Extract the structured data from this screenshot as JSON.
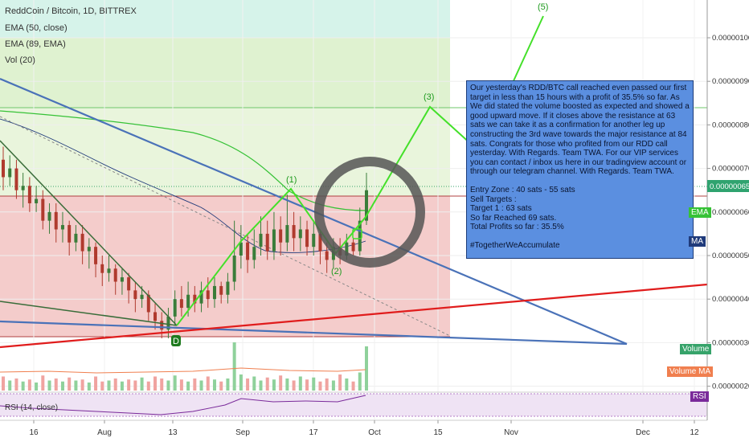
{
  "header": {
    "symbol_title": "ReddCoin / Bitcoin, 1D, BITTREX",
    "ema50_label": "EMA (50, close)",
    "ema89_label": "EMA (89, EMA)",
    "vol_label": "Vol (20)",
    "rsi_label": "RSI (14, close)"
  },
  "note": {
    "text": "Our yesterday's RDD/BTC call reached even passed our first target in less than 15 hours with a profit of 35.5% so far. As We did stated the volume boosted as expected and showed a good upward move. If it closes above the resistance at 63 sats we can take it as a confirmation for another leg up constructing the 3rd wave towards the major resistance at 84 sats. Congrats for those who profited from our RDD call yesterday. With Regards. Team TWA. For our VIP services you can contact / inbox us here in our tradingview account or through our telegram channel. With Regards. Team TWA.",
    "entry": "Entry Zone : 40 sats - 55 sats",
    "sell": "Sell Targets :",
    "target1": "Target 1 : 63 sats",
    "reached": "So far Reached 69 sats.",
    "profits": "Total Profits so far : 35.5%",
    "hashtag": "#TogetherWeAccumulate"
  },
  "tags": {
    "ema": "EMA",
    "ma": "MA",
    "volume": "Volume",
    "volume_ma": "Volume MA",
    "rsi": "RSI",
    "price": "0.00000065"
  },
  "colors": {
    "green_zone": "#dff2d0",
    "red_zone": "#f4cccb",
    "top_zone": "#d6f3ea",
    "candle_up": "#3a7d3a",
    "candle_down": "#b03a2e",
    "wave": "#44e02a",
    "trend_blue": "#4a72b8",
    "trend_red": "#e01c1c",
    "ema_green": "#36c236",
    "ema_navy": "#1f3a7a",
    "note_bg": "#5b8fe0",
    "circle": "#555555"
  },
  "chart_data": {
    "type": "candlestick",
    "title": "ReddCoin / Bitcoin, 1D, BITTREX",
    "y_unit": "BTC",
    "ylim": [
      1.7e-07,
      1.06e-07
    ],
    "y_ticks": [
      "0.00000100",
      "0.00000090",
      "0.00000080",
      "0.00000070",
      "0.00000060",
      "0.00000050",
      "0.00000040",
      "0.00000030",
      "0.00000020"
    ],
    "x_ticks": [
      "16",
      "Aug",
      "13",
      "Sep",
      "17",
      "Oct",
      "15",
      "Nov",
      "Dec",
      "12"
    ],
    "last_price": 6.5e-07,
    "levels": {
      "resistance_major": 8.4e-07,
      "resistance": 6.3e-07,
      "support": 3e-07,
      "top": 1e-06
    },
    "wave_labels": [
      "(1)",
      "(2)",
      "(3)",
      "(5)",
      "D"
    ],
    "candles": [
      {
        "o": 72,
        "c": 68,
        "h": 75,
        "l": 65
      },
      {
        "o": 68,
        "c": 70,
        "h": 73,
        "l": 66
      },
      {
        "o": 70,
        "c": 65,
        "h": 72,
        "l": 63
      },
      {
        "o": 65,
        "c": 66,
        "h": 69,
        "l": 61
      },
      {
        "o": 66,
        "c": 62,
        "h": 68,
        "l": 60
      },
      {
        "o": 62,
        "c": 63,
        "h": 66,
        "l": 60
      },
      {
        "o": 63,
        "c": 58,
        "h": 65,
        "l": 56
      },
      {
        "o": 58,
        "c": 60,
        "h": 62,
        "l": 55
      },
      {
        "o": 60,
        "c": 56,
        "h": 62,
        "l": 53
      },
      {
        "o": 56,
        "c": 57,
        "h": 60,
        "l": 53
      },
      {
        "o": 57,
        "c": 53,
        "h": 58,
        "l": 50
      },
      {
        "o": 53,
        "c": 55,
        "h": 57,
        "l": 51
      },
      {
        "o": 55,
        "c": 51,
        "h": 57,
        "l": 48
      },
      {
        "o": 51,
        "c": 52,
        "h": 54,
        "l": 47
      },
      {
        "o": 52,
        "c": 48,
        "h": 53,
        "l": 45
      },
      {
        "o": 48,
        "c": 46,
        "h": 50,
        "l": 43
      },
      {
        "o": 46,
        "c": 47,
        "h": 50,
        "l": 44
      },
      {
        "o": 47,
        "c": 44,
        "h": 48,
        "l": 41
      },
      {
        "o": 44,
        "c": 45,
        "h": 47,
        "l": 41
      },
      {
        "o": 45,
        "c": 42,
        "h": 46,
        "l": 39
      },
      {
        "o": 42,
        "c": 40,
        "h": 44,
        "l": 37
      },
      {
        "o": 40,
        "c": 41,
        "h": 43,
        "l": 38
      },
      {
        "o": 41,
        "c": 37,
        "h": 42,
        "l": 35
      },
      {
        "o": 37,
        "c": 35,
        "h": 39,
        "l": 33
      },
      {
        "o": 35,
        "c": 33,
        "h": 37,
        "l": 31
      },
      {
        "o": 33,
        "c": 36,
        "h": 38,
        "l": 31
      },
      {
        "o": 36,
        "c": 40,
        "h": 42,
        "l": 34
      },
      {
        "o": 40,
        "c": 38,
        "h": 43,
        "l": 36
      },
      {
        "o": 38,
        "c": 41,
        "h": 44,
        "l": 36
      },
      {
        "o": 41,
        "c": 39,
        "h": 43,
        "l": 37
      },
      {
        "o": 39,
        "c": 42,
        "h": 44,
        "l": 37
      },
      {
        "o": 42,
        "c": 40,
        "h": 45,
        "l": 38
      },
      {
        "o": 40,
        "c": 43,
        "h": 45,
        "l": 38
      },
      {
        "o": 43,
        "c": 41,
        "h": 44,
        "l": 39
      },
      {
        "o": 41,
        "c": 44,
        "h": 46,
        "l": 39
      },
      {
        "o": 44,
        "c": 50,
        "h": 58,
        "l": 42
      },
      {
        "o": 50,
        "c": 53,
        "h": 57,
        "l": 47
      },
      {
        "o": 53,
        "c": 49,
        "h": 55,
        "l": 46
      },
      {
        "o": 49,
        "c": 52,
        "h": 56,
        "l": 47
      },
      {
        "o": 52,
        "c": 55,
        "h": 59,
        "l": 50
      },
      {
        "o": 55,
        "c": 51,
        "h": 58,
        "l": 49
      },
      {
        "o": 51,
        "c": 56,
        "h": 60,
        "l": 49
      },
      {
        "o": 56,
        "c": 53,
        "h": 59,
        "l": 50
      },
      {
        "o": 53,
        "c": 57,
        "h": 64,
        "l": 51
      },
      {
        "o": 57,
        "c": 54,
        "h": 60,
        "l": 51
      },
      {
        "o": 54,
        "c": 56,
        "h": 59,
        "l": 51
      },
      {
        "o": 56,
        "c": 52,
        "h": 58,
        "l": 50
      },
      {
        "o": 52,
        "c": 55,
        "h": 58,
        "l": 50
      },
      {
        "o": 55,
        "c": 51,
        "h": 56,
        "l": 48
      },
      {
        "o": 51,
        "c": 49,
        "h": 53,
        "l": 46
      },
      {
        "o": 49,
        "c": 52,
        "h": 54,
        "l": 47
      },
      {
        "o": 52,
        "c": 50,
        "h": 54,
        "l": 48
      },
      {
        "o": 50,
        "c": 53,
        "h": 55,
        "l": 49
      },
      {
        "o": 53,
        "c": 51,
        "h": 54,
        "l": 50
      },
      {
        "o": 51,
        "c": 58,
        "h": 61,
        "l": 50
      },
      {
        "o": 58,
        "c": 65,
        "h": 69,
        "l": 57
      }
    ],
    "volume": [
      14,
      10,
      12,
      9,
      11,
      8,
      15,
      10,
      12,
      9,
      13,
      10,
      11,
      8,
      14,
      9,
      10,
      12,
      9,
      11,
      10,
      13,
      9,
      14,
      12,
      10,
      15,
      11,
      9,
      12,
      10,
      14,
      11,
      9,
      12,
      48,
      16,
      12,
      14,
      10,
      13,
      11,
      15,
      12,
      10,
      14,
      11,
      13,
      9,
      12,
      10,
      16,
      12,
      9,
      18,
      44
    ]
  }
}
